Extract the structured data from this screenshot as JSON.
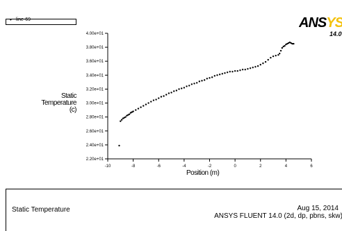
{
  "legend": {
    "marker": "•",
    "label": "line-69"
  },
  "logo": {
    "text_main": "ANS",
    "text_accent": "YS",
    "version": "14.0"
  },
  "footer": {
    "title": "Static Temperature",
    "date": "Aug 15, 2014",
    "program": "ANSYS FLUENT 14.0 (2d, dp, pbns, skw)"
  },
  "chart_data": {
    "type": "scatter",
    "xlabel": "Position (m)",
    "ylabel_lines": [
      "Static",
      "Temperature",
      "(c)"
    ],
    "xlim": [
      -10,
      6
    ],
    "ylim": [
      22,
      40
    ],
    "x_ticks": [
      -10,
      -8,
      -6,
      -4,
      -2,
      0,
      2,
      4,
      6
    ],
    "x_tick_labels": [
      "-10",
      "-8",
      "-6",
      "-4",
      "-2",
      "0",
      "2",
      "4",
      "6"
    ],
    "y_ticks": [
      22,
      24,
      26,
      28,
      30,
      32,
      34,
      36,
      38,
      40
    ],
    "y_tick_labels": [
      "2.20e+01",
      "2.40e+01",
      "2.60e+01",
      "2.80e+01",
      "3.00e+01",
      "3.20e+01",
      "3.40e+01",
      "3.60e+01",
      "3.80e+01",
      "4.00e+01"
    ],
    "series": [
      {
        "name": "line-69",
        "marker_color": "#000000",
        "points": [
          [
            -9.1,
            23.9
          ],
          [
            -9.0,
            27.4
          ],
          [
            -8.9,
            27.6
          ],
          [
            -8.8,
            27.8
          ],
          [
            -8.7,
            27.9
          ],
          [
            -8.6,
            28.0
          ],
          [
            -8.5,
            28.2
          ],
          [
            -8.4,
            28.3
          ],
          [
            -8.3,
            28.4
          ],
          [
            -8.2,
            28.6
          ],
          [
            -8.1,
            28.7
          ],
          [
            -8.0,
            28.8
          ],
          [
            -7.8,
            29.0
          ],
          [
            -7.6,
            29.2
          ],
          [
            -7.4,
            29.4
          ],
          [
            -7.2,
            29.6
          ],
          [
            -7.0,
            29.8
          ],
          [
            -6.8,
            30.0
          ],
          [
            -6.6,
            30.2
          ],
          [
            -6.4,
            30.4
          ],
          [
            -6.2,
            30.5
          ],
          [
            -6.0,
            30.7
          ],
          [
            -5.8,
            30.9
          ],
          [
            -5.6,
            31.0
          ],
          [
            -5.4,
            31.2
          ],
          [
            -5.2,
            31.4
          ],
          [
            -5.0,
            31.5
          ],
          [
            -4.8,
            31.7
          ],
          [
            -4.6,
            31.8
          ],
          [
            -4.4,
            32.0
          ],
          [
            -4.2,
            32.1
          ],
          [
            -4.0,
            32.2
          ],
          [
            -3.8,
            32.4
          ],
          [
            -3.6,
            32.5
          ],
          [
            -3.4,
            32.7
          ],
          [
            -3.2,
            32.8
          ],
          [
            -3.0,
            32.9
          ],
          [
            -2.8,
            33.1
          ],
          [
            -2.6,
            33.2
          ],
          [
            -2.4,
            33.3
          ],
          [
            -2.2,
            33.5
          ],
          [
            -2.0,
            33.6
          ],
          [
            -1.8,
            33.7
          ],
          [
            -1.6,
            33.9
          ],
          [
            -1.4,
            34.0
          ],
          [
            -1.2,
            34.1
          ],
          [
            -1.0,
            34.2
          ],
          [
            -0.8,
            34.3
          ],
          [
            -0.6,
            34.4
          ],
          [
            -0.4,
            34.5
          ],
          [
            -0.2,
            34.5
          ],
          [
            0.0,
            34.6
          ],
          [
            0.2,
            34.6
          ],
          [
            0.4,
            34.7
          ],
          [
            0.6,
            34.8
          ],
          [
            0.8,
            34.8
          ],
          [
            1.0,
            34.9
          ],
          [
            1.2,
            35.0
          ],
          [
            1.4,
            35.1
          ],
          [
            1.6,
            35.2
          ],
          [
            1.8,
            35.3
          ],
          [
            2.0,
            35.5
          ],
          [
            2.2,
            35.7
          ],
          [
            2.4,
            35.9
          ],
          [
            2.6,
            36.2
          ],
          [
            2.8,
            36.5
          ],
          [
            3.0,
            36.7
          ],
          [
            3.2,
            36.8
          ],
          [
            3.4,
            36.9
          ],
          [
            3.5,
            37.1
          ],
          [
            3.6,
            37.5
          ],
          [
            3.7,
            37.9
          ],
          [
            3.8,
            38.1
          ],
          [
            3.9,
            38.2
          ],
          [
            4.0,
            38.4
          ],
          [
            4.1,
            38.5
          ],
          [
            4.2,
            38.6
          ],
          [
            4.3,
            38.7
          ],
          [
            4.4,
            38.6
          ],
          [
            4.5,
            38.5
          ],
          [
            4.6,
            38.5
          ]
        ]
      }
    ]
  }
}
